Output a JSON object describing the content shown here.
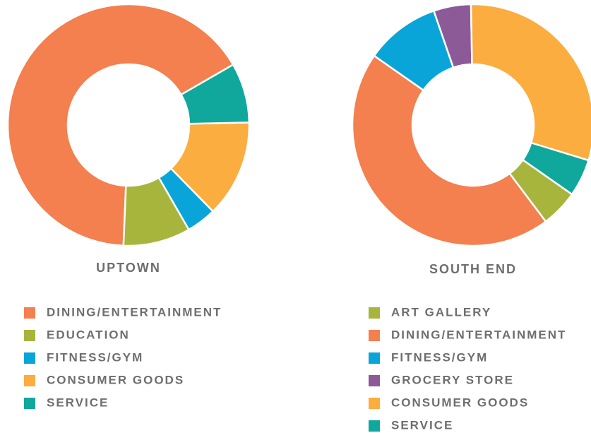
{
  "chart_data": [
    {
      "type": "donut",
      "title": "UPTOWN",
      "categories": [
        "DINING/ENTERTAINMENT",
        "EDUCATION",
        "FITNESS/GYM",
        "CONSUMER GOODS",
        "SERVICE"
      ],
      "values": [
        66,
        9,
        4,
        13,
        8
      ],
      "colors": [
        "#f47f4f",
        "#a8b53c",
        "#0aa5d8",
        "#fbad3f",
        "#10a89d"
      ]
    },
    {
      "type": "donut",
      "title": "SOUTH END",
      "categories": [
        "ART GALLERY",
        "DINING/ENTERTAINMENT",
        "FITNESS/GYM",
        "GROCERY STORE",
        "CONSUMER GOODS",
        "SERVICE"
      ],
      "values": [
        5,
        45,
        10,
        5,
        30,
        5
      ],
      "colors": [
        "#a8b53c",
        "#f47f4f",
        "#0aa5d8",
        "#8b5a97",
        "#fbad3f",
        "#10a89d"
      ]
    }
  ]
}
